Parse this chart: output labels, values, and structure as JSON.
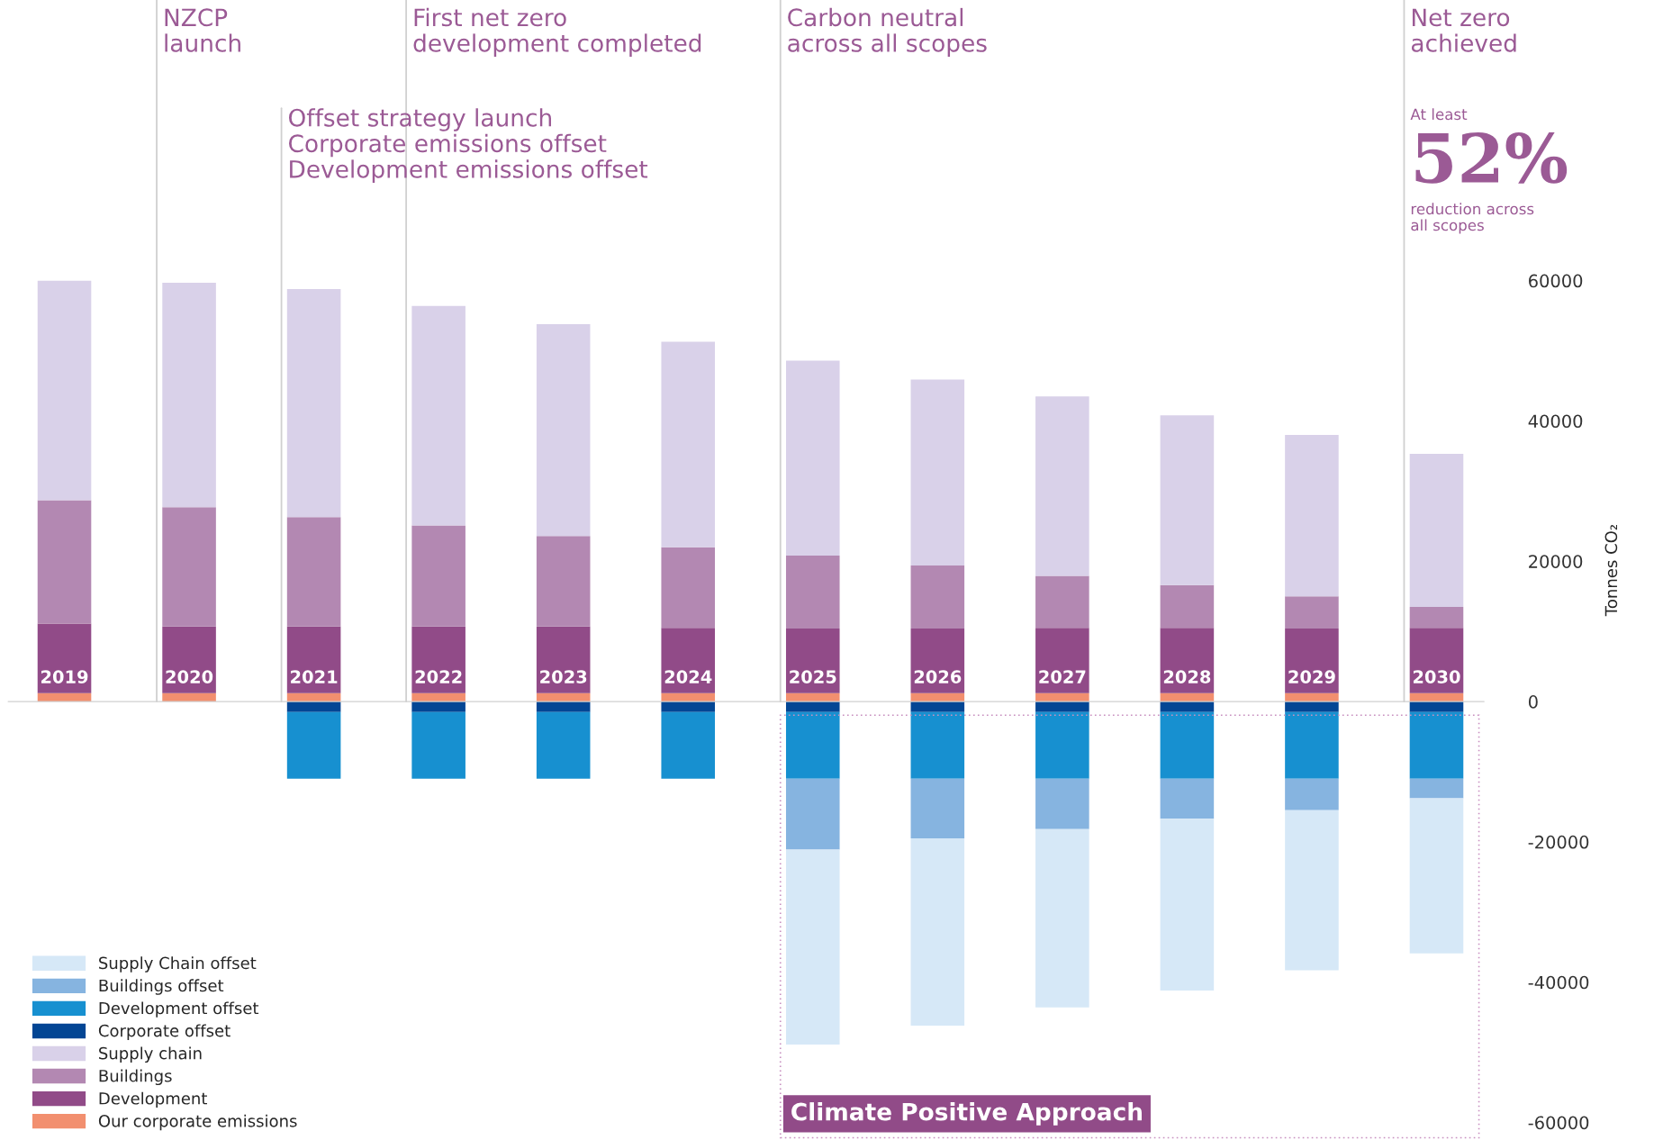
{
  "chart_data": {
    "type": "bar",
    "stacked": true,
    "categories": [
      "2019",
      "2020",
      "2021",
      "2022",
      "2023",
      "2024",
      "2025",
      "2026",
      "2027",
      "2028",
      "2029",
      "2030"
    ],
    "series": [
      {
        "name": "Our corporate emissions",
        "color": "#f28f6f",
        "values": [
          1200,
          1200,
          1200,
          1200,
          1200,
          1200,
          1200,
          1200,
          1200,
          1200,
          1200,
          1200
        ]
      },
      {
        "name": "Development",
        "color": "#914b88",
        "values": [
          9900,
          9500,
          9500,
          9500,
          9500,
          9300,
          9200,
          9200,
          9300,
          9300,
          9200,
          9300
        ]
      },
      {
        "name": "Buildings",
        "color": "#b388b2",
        "values": [
          17600,
          17000,
          15600,
          14400,
          12900,
          11500,
          10400,
          9000,
          7400,
          6100,
          4600,
          3000
        ]
      },
      {
        "name": "Supply chain",
        "color": "#d9d1e9",
        "values": [
          31300,
          32000,
          32500,
          31300,
          30200,
          29300,
          27800,
          26500,
          25600,
          24200,
          23000,
          21800
        ]
      },
      {
        "name": "Corporate offset",
        "color": "#034694",
        "values": [
          null,
          null,
          -1500,
          -1500,
          -1500,
          -1500,
          -1500,
          -1500,
          -1500,
          -1500,
          -1500,
          -1500
        ]
      },
      {
        "name": "Development offset",
        "color": "#1790d0",
        "values": [
          null,
          null,
          -9500,
          -9500,
          -9500,
          -9500,
          -9500,
          -9500,
          -9500,
          -9500,
          -9500,
          -9500
        ]
      },
      {
        "name": "Buildings offset",
        "color": "#86b4e0",
        "values": [
          null,
          null,
          null,
          null,
          null,
          null,
          -10100,
          -8500,
          -7200,
          -5700,
          -4500,
          -2800
        ]
      },
      {
        "name": "Supply Chain offset",
        "color": "#d6e8f7",
        "values": [
          null,
          null,
          null,
          null,
          null,
          null,
          -27800,
          -26700,
          -25400,
          -24500,
          -22800,
          -22100
        ]
      }
    ],
    "ylabel": "Tonnes CO₂",
    "ylim": [
      -62500,
      100000
    ],
    "yticks": [
      -60000,
      -40000,
      -20000,
      0,
      20000,
      40000,
      60000
    ],
    "grid": false,
    "legend": "bottom left",
    "annotations": [
      "NZCP\nlaunch",
      "First net zero\ndevelopment completed",
      "Carbon neutral\nacross all scopes",
      "Net zero\nachieved",
      "Offset strategy launch\nCorporate emissions offset\nDevelopment emissions offset",
      "At least",
      "52%",
      "reduction across\nall scopes",
      "Climate Positive Approach"
    ]
  }
}
